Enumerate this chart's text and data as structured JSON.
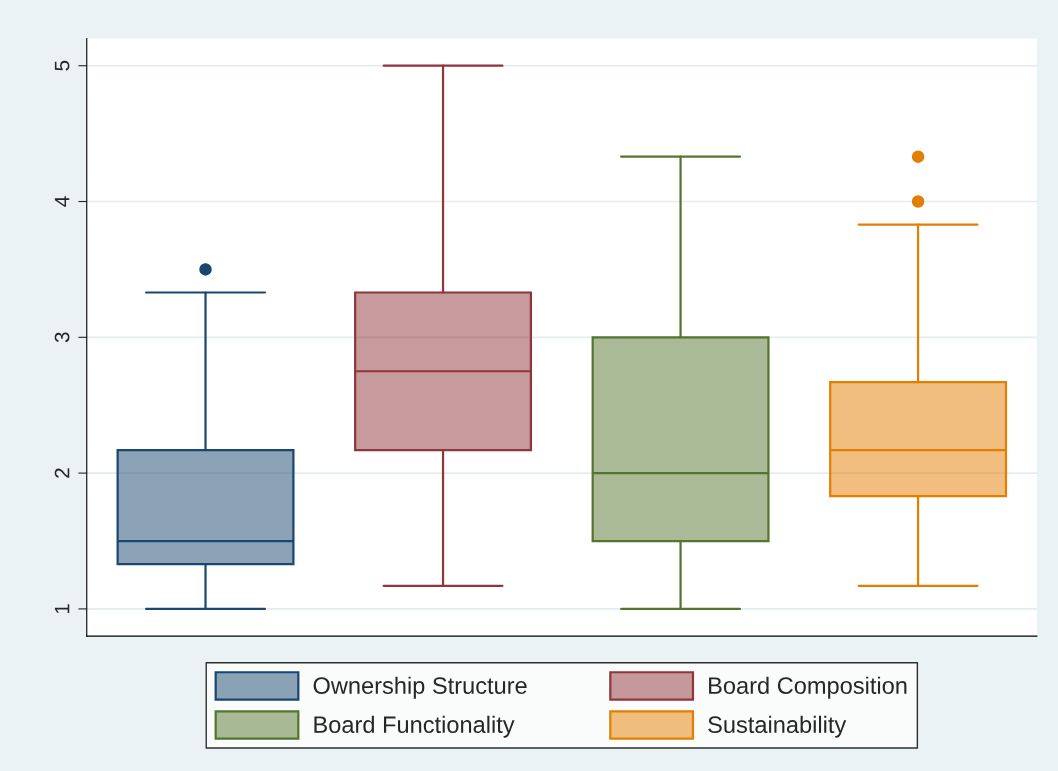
{
  "chart_data": {
    "type": "box",
    "categories": [
      null,
      null,
      null,
      null
    ],
    "series": [
      {
        "name": "Ownership Structure",
        "color": "#1a476f",
        "boxes": [
          {
            "low": 1,
            "q1": 1.33,
            "median": 1.5,
            "q3": 2.17,
            "high": 3.33,
            "outliers": [
              3.5
            ]
          },
          null,
          null,
          null
        ]
      },
      {
        "name": "Board Composition",
        "color": "#90353b",
        "boxes": [
          null,
          {
            "low": 1.17,
            "q1": 2.17,
            "median": 2.75,
            "q3": 3.33,
            "high": 5
          },
          null,
          null
        ]
      },
      {
        "name": "Board Functionality",
        "color": "#55752f",
        "boxes": [
          null,
          null,
          {
            "low": 1,
            "q1": 1.5,
            "median": 2,
            "q3": 3,
            "high": 4.33
          },
          null
        ]
      },
      {
        "name": "Sustainability",
        "color": "#e37e00",
        "boxes": [
          null,
          null,
          null,
          {
            "low": 1.17,
            "q1": 1.83,
            "median": 2.17,
            "q3": 2.67,
            "high": 3.83,
            "outliers": [
              4,
              4.33
            ]
          }
        ]
      }
    ],
    "ylim": [
      0.8,
      5.2
    ],
    "yticks": [
      1,
      2,
      3,
      4,
      5
    ],
    "grid": "y",
    "legend": "bottom",
    "tick_labels": "y"
  }
}
